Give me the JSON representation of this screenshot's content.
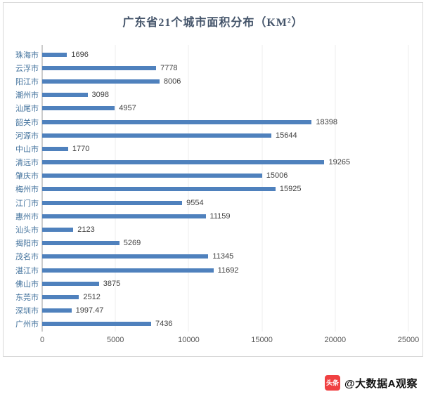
{
  "watermark": {
    "icon_text": "头条",
    "label": "@大数据A观察"
  },
  "chart_data": {
    "type": "bar",
    "orientation": "horizontal",
    "title": "广东省21个城市面积分布（KM²）",
    "categories": [
      "珠海市",
      "云浮市",
      "阳江市",
      "潮州市",
      "汕尾市",
      "韶关市",
      "河源市",
      "中山市",
      "清远市",
      "肇庆市",
      "梅州市",
      "江门市",
      "惠州市",
      "汕头市",
      "揭阳市",
      "茂名市",
      "湛江市",
      "佛山市",
      "东莞市",
      "深圳市",
      "广州市"
    ],
    "values": [
      1696,
      7778,
      8006,
      3098,
      4957,
      18398,
      15644,
      1770,
      19265,
      15006,
      15925,
      9554,
      11159,
      2123,
      5269,
      11345,
      11692,
      3875,
      2512,
      1997.47,
      7436
    ],
    "xlim": [
      0,
      25000
    ],
    "x_tick_labels": [
      "0",
      "5000",
      "10000",
      "15000",
      "20000",
      "25000"
    ],
    "bar_color": "#4f81bd",
    "grid": true,
    "legend_position": "none"
  }
}
